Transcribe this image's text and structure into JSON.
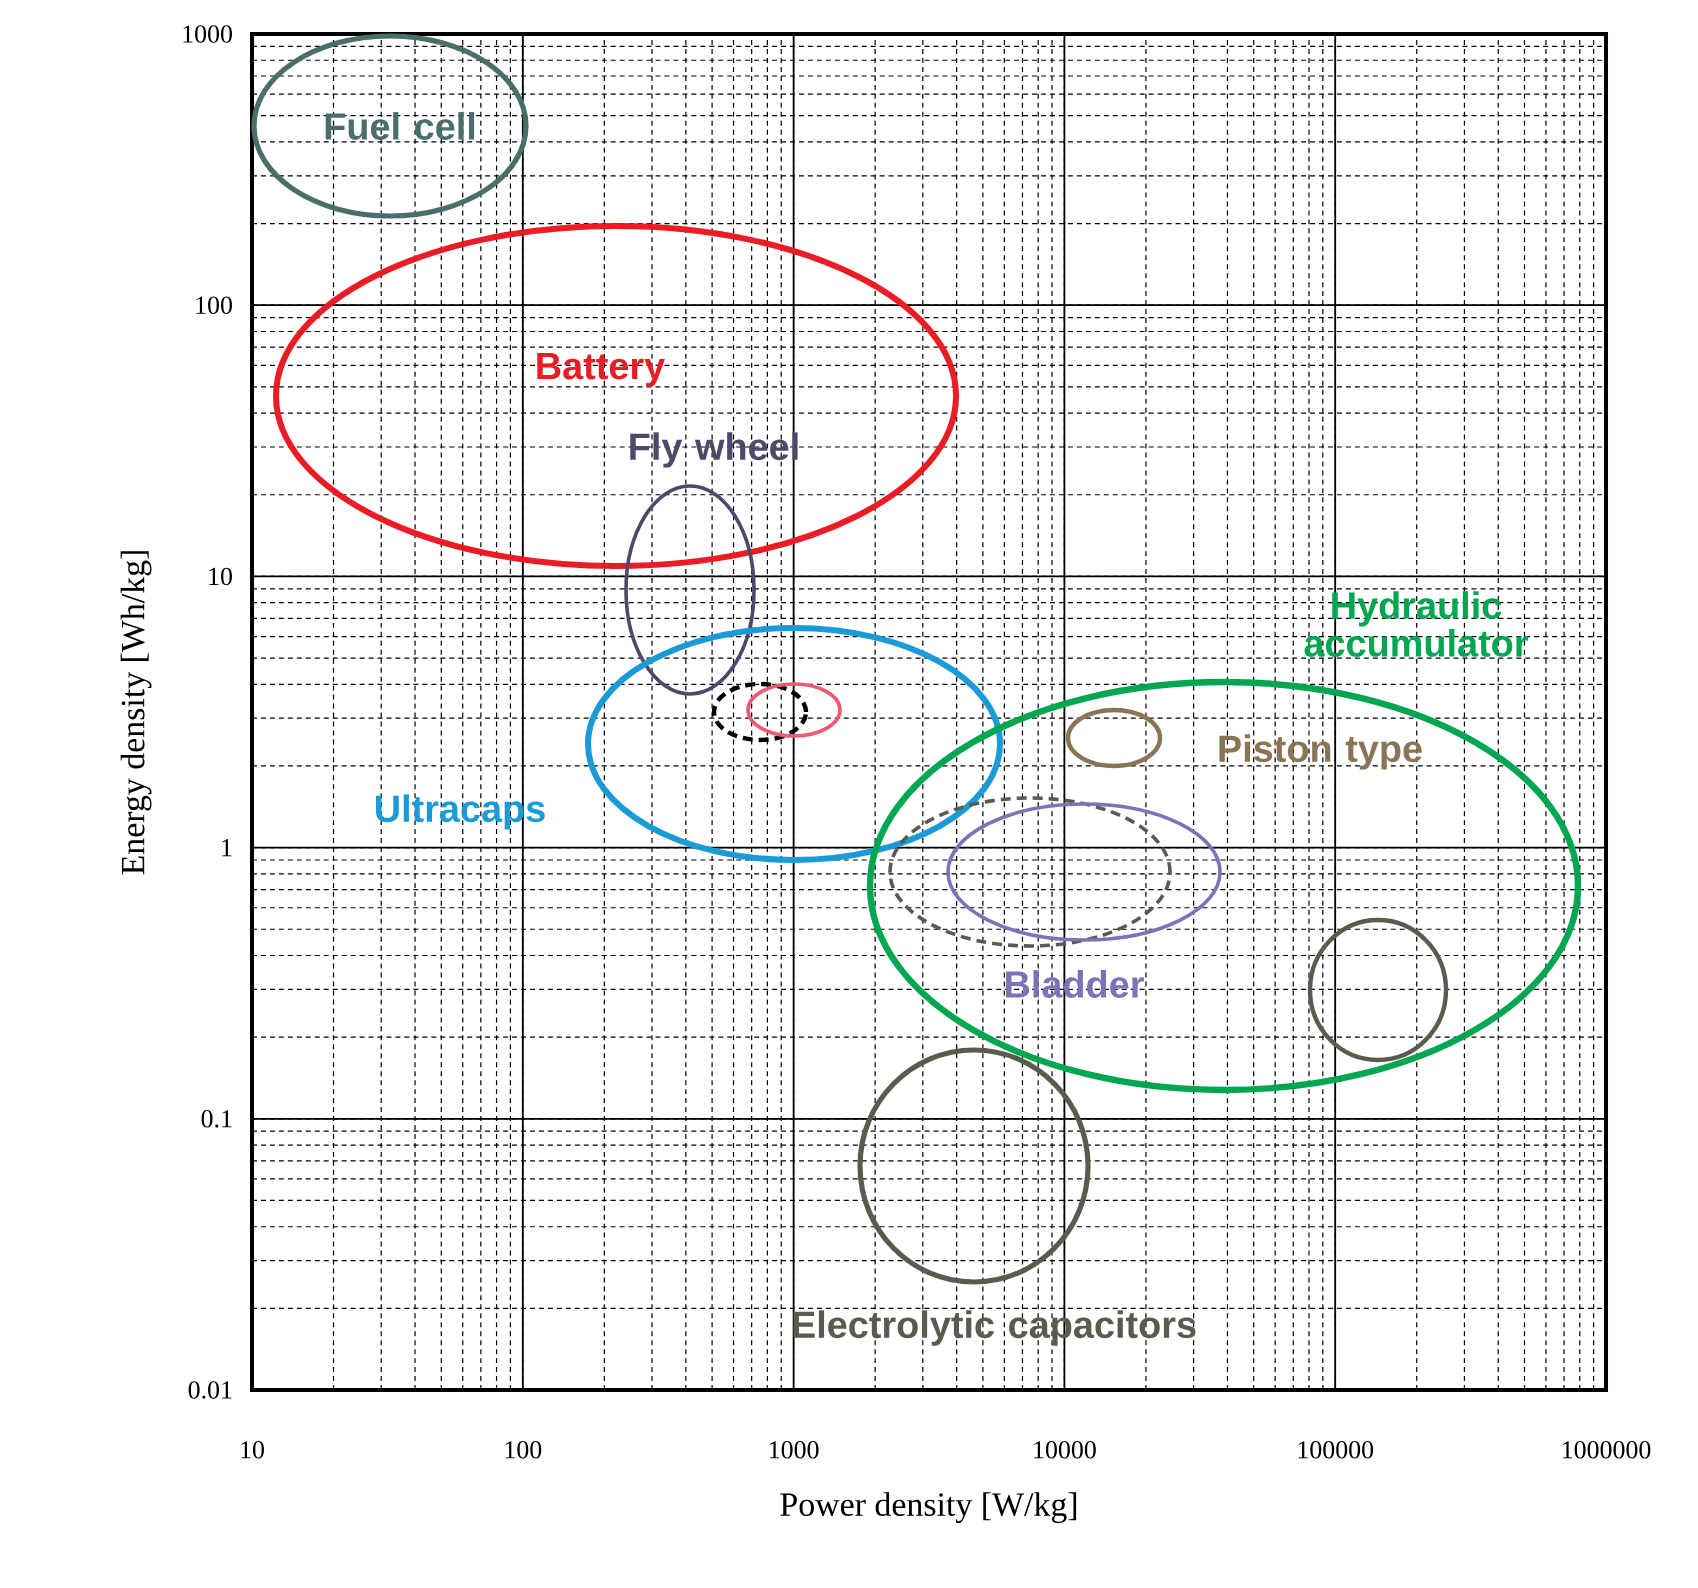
{
  "chart_data": {
    "type": "line",
    "xlabel": "Power density [W/kg]",
    "ylabel": "Energy density [Wh/kg]",
    "log": "xy",
    "grid": true,
    "xlim": [
      10,
      1000000
    ],
    "xticks": [
      10,
      100,
      1000,
      10000,
      100000,
      1000000
    ],
    "ylim": [
      0.01,
      1000
    ],
    "yticks": [
      0.01,
      0.1,
      1,
      10,
      100,
      1000
    ],
    "annotations": [
      "Fuel cell",
      "Battery",
      "Fly wheel",
      "Ultracaps",
      "Hydraulic accumulator",
      "Piston type",
      "Bladder",
      "Electrolytic capacitors"
    ]
  }
}
